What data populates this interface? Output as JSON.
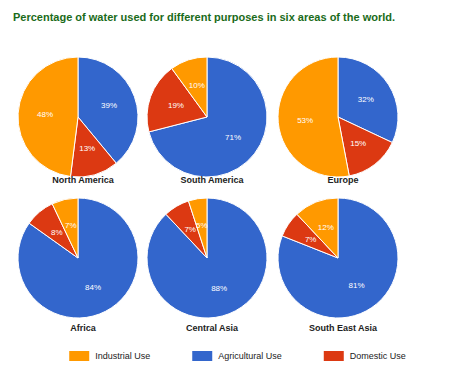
{
  "title": "Percentage of water used for different purposes in six areas of the world.",
  "legend": "bottom",
  "chart_data": [
    {
      "type": "pie",
      "title": "North America",
      "categories": [
        "Agricultural Use",
        "Domestic Use",
        "Industrial Use"
      ],
      "values": [
        39,
        13,
        48
      ],
      "value_labels": [
        "39%",
        "13%",
        "48%"
      ],
      "colors": [
        "#3366cc",
        "#dc3912",
        "#ff9900"
      ],
      "data_labels": true
    },
    {
      "type": "pie",
      "title": "South America",
      "categories": [
        "Agricultural Use",
        "Domestic Use",
        "Industrial Use"
      ],
      "values": [
        71,
        19,
        10
      ],
      "value_labels": [
        "71%",
        "19%",
        "10%"
      ],
      "colors": [
        "#3366cc",
        "#dc3912",
        "#ff9900"
      ],
      "data_labels": true
    },
    {
      "type": "pie",
      "title": "Europe",
      "categories": [
        "Agricultural Use",
        "Domestic Use",
        "Industrial Use"
      ],
      "values": [
        32,
        15,
        53
      ],
      "value_labels": [
        "32%",
        "15%",
        "53%"
      ],
      "colors": [
        "#3366cc",
        "#dc3912",
        "#ff9900"
      ],
      "data_labels": true
    },
    {
      "type": "pie",
      "title": "Africa",
      "categories": [
        "Agricultural Use",
        "Domestic Use",
        "Industrial Use"
      ],
      "values": [
        84,
        8,
        7
      ],
      "value_labels": [
        "84%",
        "8%",
        "7%"
      ],
      "colors": [
        "#3366cc",
        "#dc3912",
        "#ff9900"
      ],
      "data_labels": true
    },
    {
      "type": "pie",
      "title": "Central Asia",
      "categories": [
        "Agricultural Use",
        "Domestic Use",
        "Industrial Use"
      ],
      "values": [
        88,
        7,
        5
      ],
      "value_labels": [
        "88%",
        "7%",
        "5%"
      ],
      "colors": [
        "#3366cc",
        "#dc3912",
        "#ff9900"
      ],
      "data_labels": true
    },
    {
      "type": "pie",
      "title": "South East Asia",
      "categories": [
        "Agricultural Use",
        "Domestic Use",
        "Industrial Use"
      ],
      "values": [
        81,
        7,
        12
      ],
      "value_labels": [
        "81%",
        "7%",
        "12%"
      ],
      "colors": [
        "#3366cc",
        "#dc3912",
        "#ff9900"
      ],
      "data_labels": true
    }
  ]
}
